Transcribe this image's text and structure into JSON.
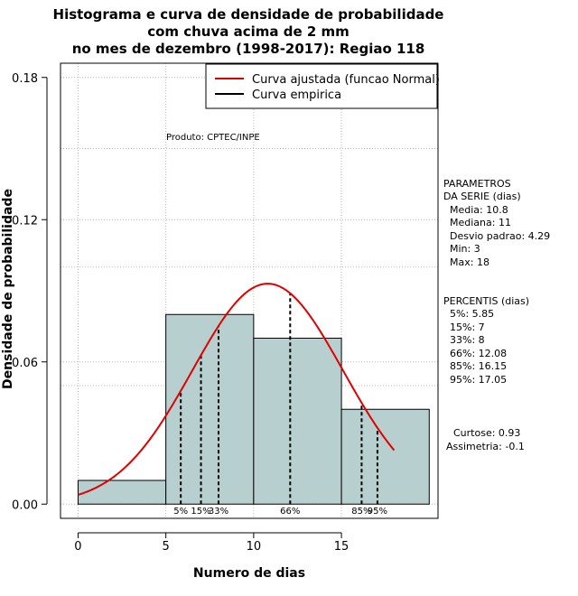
{
  "chart_data": {
    "type": "bar",
    "title_lines": [
      "Histograma e curva de densidade de probabilidade",
      "com chuva acima de 2 mm",
      "no mes de dezembro (1998-2017): Regiao 118"
    ],
    "xlabel": "Numero de dias",
    "ylabel": "Densidade de probabilidade",
    "xlim": [
      -1,
      20.5
    ],
    "ylim": [
      -0.006,
      0.186
    ],
    "x_ticks": [
      0,
      5,
      10,
      15
    ],
    "x_tick_labels": [
      "0",
      "5",
      "10",
      "15"
    ],
    "y_ticks": [
      0.0,
      0.06,
      0.12,
      0.18
    ],
    "y_tick_labels": [
      "0.00",
      "0.06",
      "0.12",
      "0.18"
    ],
    "bins": [
      {
        "start": 0,
        "end": 5,
        "density": 0.01
      },
      {
        "start": 5,
        "end": 10,
        "density": 0.08
      },
      {
        "start": 10,
        "end": 15,
        "density": 0.07
      },
      {
        "start": 15,
        "end": 20,
        "density": 0.04
      }
    ],
    "normal_fit": {
      "mean": 10.8,
      "sd": 4.29,
      "x_from": 0,
      "x_to": 18,
      "color": "#e00000"
    },
    "bar_color": "#b7cfce",
    "percentiles": [
      {
        "x": 5.85,
        "label": "5%"
      },
      {
        "x": 7,
        "label": "15%"
      },
      {
        "x": 8,
        "label": "33%"
      },
      {
        "x": 12.08,
        "label": "66%"
      },
      {
        "x": 16.15,
        "label": "85%"
      },
      {
        "x": 17.05,
        "label": "95%"
      }
    ],
    "legend": [
      {
        "label": "Curva ajustada (funcao Normal)",
        "color": "#e00000"
      },
      {
        "label": "Curva empirica",
        "color": "#000000"
      }
    ],
    "annotation": "Produto: CPTEC/INPE",
    "grid": true
  },
  "stats": {
    "params_header": [
      "PARAMETROS",
      "DA SERIE (dias)"
    ],
    "params": [
      "Media: 10.8",
      "Mediana: 11",
      "Desvio padrao: 4.29",
      "Min: 3",
      "Max: 18"
    ],
    "percentis_header": "PERCENTIS (dias)",
    "percentis": [
      "5%: 5.85",
      "15%: 7",
      "33%: 8",
      "66%: 12.08",
      "85%: 16.15",
      "95%: 17.05"
    ],
    "curtose": "Curtose: 0.93",
    "assimetria": "Assimetria: -0.1"
  }
}
